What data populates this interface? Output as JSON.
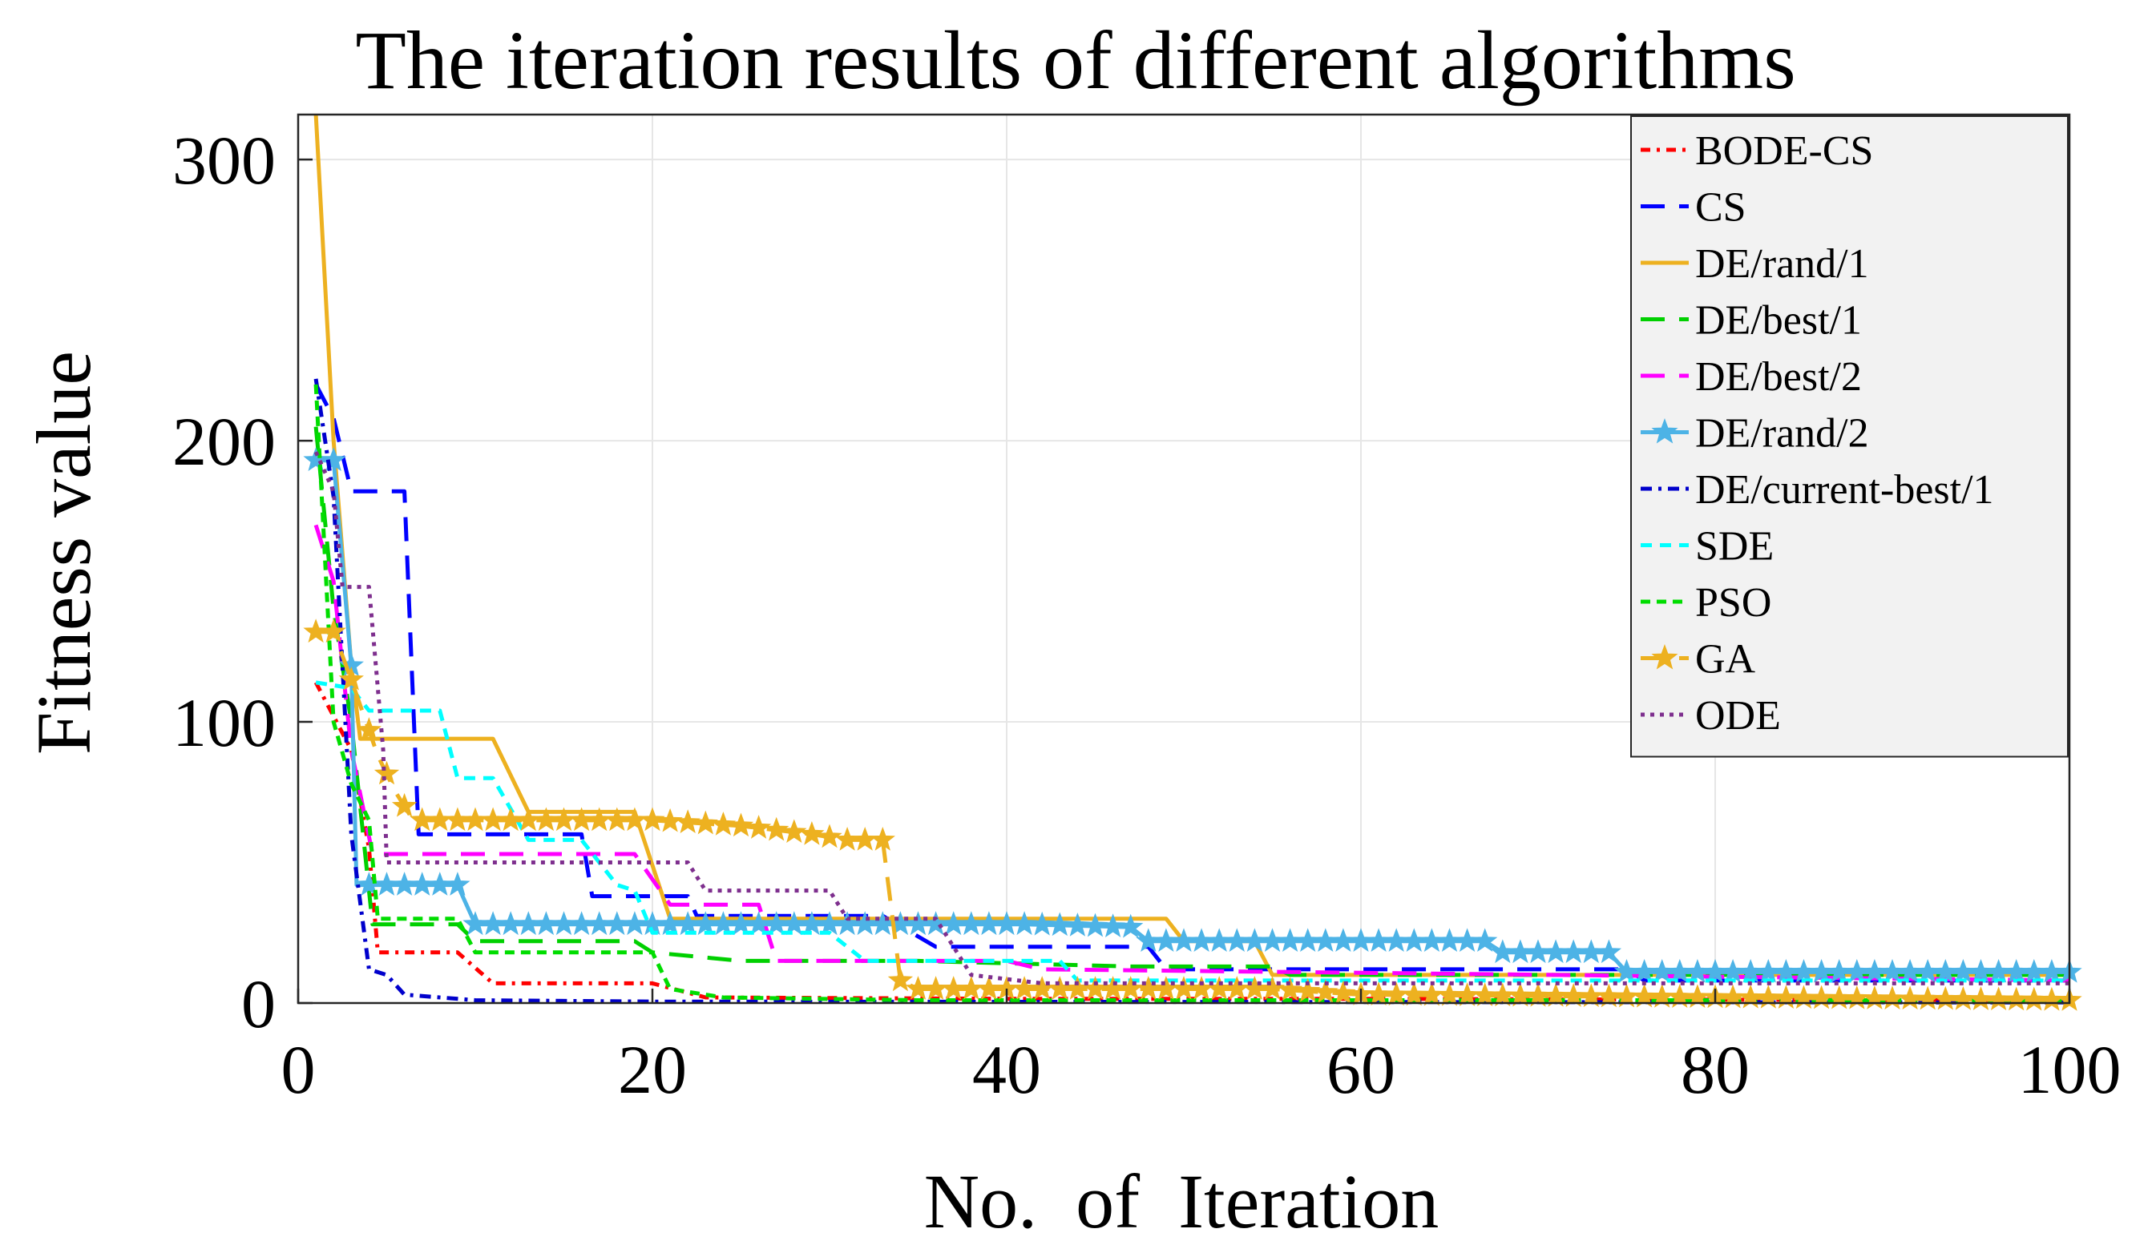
{
  "chart_data": {
    "type": "line",
    "title": "The iteration results of different algorithms",
    "xlabel": "No.  of  Iteration",
    "ylabel": "Fitness value",
    "xlim": [
      0,
      100
    ],
    "ylim": [
      0,
      316
    ],
    "xticks": [
      0,
      20,
      40,
      60,
      80,
      100
    ],
    "yticks": [
      0,
      100,
      200,
      300
    ],
    "grid": true,
    "legend_position": "top-right",
    "series": [
      {
        "name": "BODE-CS",
        "color": "#ff0000",
        "dash": "12,8,4,8",
        "marker": "none",
        "points": [
          [
            1,
            114
          ],
          [
            3,
            90
          ],
          [
            4,
            55
          ],
          [
            4.5,
            18
          ],
          [
            9,
            18
          ],
          [
            11,
            7
          ],
          [
            20,
            7
          ],
          [
            23,
            2
          ],
          [
            40,
            1.5
          ],
          [
            60,
            1.5
          ],
          [
            80,
            1.2
          ],
          [
            100,
            1
          ]
        ]
      },
      {
        "name": "CS",
        "color": "#0000ff",
        "dash": "30,18",
        "marker": "none",
        "points": [
          [
            1,
            220
          ],
          [
            2,
            208
          ],
          [
            3,
            182
          ],
          [
            6,
            182
          ],
          [
            6.8,
            60
          ],
          [
            16,
            60
          ],
          [
            16.6,
            38
          ],
          [
            22,
            38
          ],
          [
            22.5,
            31
          ],
          [
            33,
            31
          ],
          [
            36,
            20
          ],
          [
            48,
            20
          ],
          [
            49,
            12
          ],
          [
            75,
            12
          ],
          [
            76,
            8
          ],
          [
            100,
            8
          ]
        ]
      },
      {
        "name": "DE/rand/1",
        "color": "#edb120",
        "dash": "none",
        "marker": "none",
        "points": [
          [
            1,
            316
          ],
          [
            2,
            200
          ],
          [
            3,
            120
          ],
          [
            3.5,
            94
          ],
          [
            11,
            94
          ],
          [
            13,
            68
          ],
          [
            19,
            68
          ],
          [
            21,
            30
          ],
          [
            49,
            30
          ],
          [
            50,
            22
          ],
          [
            54,
            22
          ],
          [
            55,
            10
          ],
          [
            100,
            10
          ]
        ]
      },
      {
        "name": "DE/best/1",
        "color": "#00d000",
        "dash": "30,18",
        "marker": "none",
        "points": [
          [
            1,
            205
          ],
          [
            2,
            140
          ],
          [
            3,
            100
          ],
          [
            4.2,
            28
          ],
          [
            9,
            28
          ],
          [
            10,
            22
          ],
          [
            19,
            22
          ],
          [
            20,
            18
          ],
          [
            25,
            15
          ],
          [
            35,
            15
          ],
          [
            47,
            13
          ],
          [
            55,
            13
          ],
          [
            56,
            10
          ],
          [
            100,
            10
          ]
        ]
      },
      {
        "name": "DE/best/2",
        "color": "#ff00ff",
        "dash": "30,18",
        "marker": "none",
        "points": [
          [
            1,
            170
          ],
          [
            2,
            150
          ],
          [
            3,
            90
          ],
          [
            4.2,
            53
          ],
          [
            19,
            53
          ],
          [
            21,
            35
          ],
          [
            26,
            35
          ],
          [
            27,
            15
          ],
          [
            40,
            15
          ],
          [
            42,
            12
          ],
          [
            100,
            8
          ]
        ]
      },
      {
        "name": "DE/rand/2",
        "color": "#4db3e6",
        "dash": "none",
        "marker": "star",
        "points": [
          [
            1,
            193
          ],
          [
            2,
            193
          ],
          [
            3,
            120
          ],
          [
            3.3,
            42
          ],
          [
            9,
            42
          ],
          [
            10,
            28
          ],
          [
            41,
            28
          ],
          [
            47,
            27
          ],
          [
            48,
            22
          ],
          [
            67,
            22
          ],
          [
            68,
            18
          ],
          [
            74,
            18
          ],
          [
            75,
            11
          ],
          [
            100,
            11
          ]
        ]
      },
      {
        "name": "DE/current-best/1",
        "color": "#0000cc",
        "dash": "14,8,4,8",
        "marker": "none",
        "points": [
          [
            1,
            222
          ],
          [
            2,
            180
          ],
          [
            3,
            60
          ],
          [
            4,
            12
          ],
          [
            5,
            10
          ],
          [
            6,
            3
          ],
          [
            10,
            1
          ],
          [
            20,
            0.5
          ],
          [
            100,
            0.2
          ]
        ]
      },
      {
        "name": "SDE",
        "color": "#00ffff",
        "dash": "14,10",
        "marker": "none",
        "points": [
          [
            1,
            114
          ],
          [
            3,
            112
          ],
          [
            4,
            104
          ],
          [
            8,
            104
          ],
          [
            9,
            80
          ],
          [
            11,
            80
          ],
          [
            13,
            58
          ],
          [
            16,
            58
          ],
          [
            18,
            42
          ],
          [
            19,
            40
          ],
          [
            20,
            25
          ],
          [
            30,
            25
          ],
          [
            32,
            15
          ],
          [
            43,
            15
          ],
          [
            44,
            8
          ],
          [
            100,
            8
          ]
        ]
      },
      {
        "name": "PSO",
        "color": "#00dd00",
        "dash": "12,8",
        "marker": "none",
        "points": [
          [
            1,
            220
          ],
          [
            2,
            100
          ],
          [
            3,
            78
          ],
          [
            4,
            65
          ],
          [
            4.5,
            30
          ],
          [
            9,
            30
          ],
          [
            10,
            18
          ],
          [
            20,
            18
          ],
          [
            21,
            5
          ],
          [
            24,
            2
          ],
          [
            35,
            1
          ],
          [
            100,
            1
          ]
        ]
      },
      {
        "name": "GA",
        "color": "#edb120",
        "dash": "30,18",
        "marker": "star",
        "points": [
          [
            1,
            132
          ],
          [
            2,
            132
          ],
          [
            3,
            115
          ],
          [
            4.5,
            88
          ],
          [
            5.5,
            75
          ],
          [
            6.5,
            65
          ],
          [
            20,
            65
          ],
          [
            25,
            63
          ],
          [
            29,
            60
          ],
          [
            31,
            58
          ],
          [
            33,
            58
          ],
          [
            34,
            8
          ],
          [
            35,
            5
          ],
          [
            55,
            5
          ],
          [
            60,
            3
          ],
          [
            100,
            1
          ]
        ]
      },
      {
        "name": "ODE",
        "color": "#7e2f8e",
        "dash": "5,7",
        "marker": "none",
        "points": [
          [
            1,
            196
          ],
          [
            2,
            182
          ],
          [
            2.5,
            148
          ],
          [
            4,
            148
          ],
          [
            4.8,
            90
          ],
          [
            5,
            50
          ],
          [
            22,
            50
          ],
          [
            23,
            40
          ],
          [
            30,
            40
          ],
          [
            31,
            30
          ],
          [
            36,
            30
          ],
          [
            38,
            10
          ],
          [
            42,
            7
          ],
          [
            100,
            7
          ]
        ]
      }
    ]
  }
}
